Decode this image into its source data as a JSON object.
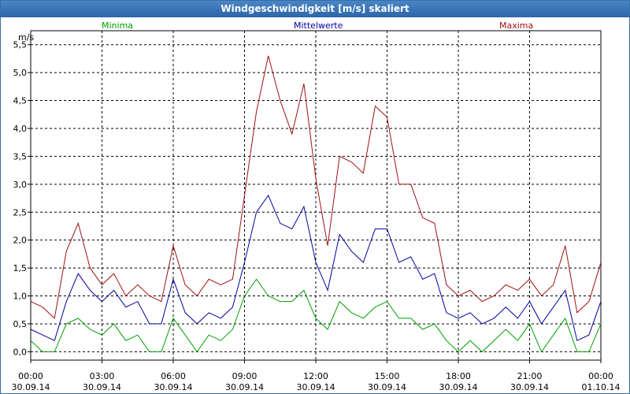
{
  "chart_data": {
    "type": "line",
    "title": "Windgeschwindigkeit [m/s] skaliert",
    "ylabel": "m/s",
    "ylim": [
      -0.15,
      5.75
    ],
    "xlim": [
      0,
      24
    ],
    "grid": true,
    "legend": [
      "Minima",
      "Mittelwerte",
      "Maxima"
    ],
    "y_ticks": [
      "0,0",
      "0,5",
      "1,0",
      "1,5",
      "2,0",
      "2,5",
      "3,0",
      "3,5",
      "4,0",
      "4,5",
      "5,0",
      "5,5"
    ],
    "y_tick_values": [
      0,
      0.5,
      1,
      1.5,
      2,
      2.5,
      3,
      3.5,
      4,
      4.5,
      5,
      5.5
    ],
    "x_ticks": [
      {
        "time": "00:00",
        "date": "30.09.14"
      },
      {
        "time": "03:00",
        "date": "30.09.14"
      },
      {
        "time": "06:00",
        "date": "30.09.14"
      },
      {
        "time": "09:00",
        "date": "30.09.14"
      },
      {
        "time": "12:00",
        "date": "30.09.14"
      },
      {
        "time": "15:00",
        "date": "30.09.14"
      },
      {
        "time": "18:00",
        "date": "30.09.14"
      },
      {
        "time": "21:00",
        "date": "30.09.14"
      },
      {
        "time": "00:00",
        "date": "01.10.14"
      }
    ],
    "x_tick_hours": [
      0,
      3,
      6,
      9,
      12,
      15,
      18,
      21,
      24
    ],
    "x_hours": [
      0,
      0.5,
      1,
      1.5,
      2,
      2.5,
      3,
      3.5,
      4,
      4.5,
      5,
      5.5,
      6,
      6.5,
      7,
      7.5,
      8,
      8.5,
      9,
      9.5,
      10,
      10.5,
      11,
      11.5,
      12,
      12.5,
      13,
      13.5,
      14,
      14.5,
      15,
      15.5,
      16,
      16.5,
      17,
      17.5,
      18,
      18.5,
      19,
      19.5,
      20,
      20.5,
      21,
      21.5,
      22,
      22.5,
      23,
      23.5,
      24
    ],
    "series": [
      {
        "name": "Maxima",
        "color": "#a01010",
        "values": [
          0.9,
          0.8,
          0.6,
          1.8,
          2.3,
          1.5,
          1.2,
          1.4,
          1.0,
          1.2,
          1.0,
          0.9,
          1.9,
          1.2,
          1.0,
          1.3,
          1.2,
          1.3,
          2.8,
          4.3,
          5.3,
          4.5,
          3.9,
          4.8,
          3.1,
          1.9,
          3.5,
          3.4,
          3.2,
          4.4,
          4.2,
          3.0,
          3.0,
          2.4,
          2.3,
          1.2,
          1.0,
          1.1,
          0.9,
          1.0,
          1.2,
          1.1,
          1.3,
          1.0,
          1.2,
          1.9,
          0.7,
          0.9,
          1.6
        ]
      },
      {
        "name": "Mittelwerte",
        "color": "#0000a0",
        "values": [
          0.4,
          0.3,
          0.2,
          0.9,
          1.4,
          1.1,
          0.9,
          1.1,
          0.8,
          0.9,
          0.5,
          0.5,
          1.3,
          0.7,
          0.5,
          0.7,
          0.6,
          0.8,
          1.6,
          2.5,
          2.8,
          2.3,
          2.2,
          2.6,
          1.6,
          1.1,
          2.1,
          1.8,
          1.6,
          2.2,
          2.2,
          1.6,
          1.7,
          1.3,
          1.4,
          0.7,
          0.6,
          0.7,
          0.5,
          0.6,
          0.8,
          0.6,
          0.9,
          0.5,
          0.8,
          1.1,
          0.2,
          0.3,
          0.9
        ]
      },
      {
        "name": "Minima",
        "color": "#00a000",
        "values": [
          0.2,
          0.0,
          0.0,
          0.5,
          0.6,
          0.4,
          0.3,
          0.5,
          0.2,
          0.3,
          0.0,
          0.0,
          0.6,
          0.3,
          0.0,
          0.3,
          0.2,
          0.4,
          1.0,
          1.3,
          1.0,
          0.9,
          0.9,
          1.1,
          0.6,
          0.4,
          0.9,
          0.7,
          0.6,
          0.8,
          0.9,
          0.6,
          0.6,
          0.4,
          0.5,
          0.2,
          0.0,
          0.2,
          0.0,
          0.2,
          0.4,
          0.2,
          0.5,
          0.0,
          0.3,
          0.6,
          0.0,
          0.0,
          0.5
        ]
      }
    ]
  }
}
